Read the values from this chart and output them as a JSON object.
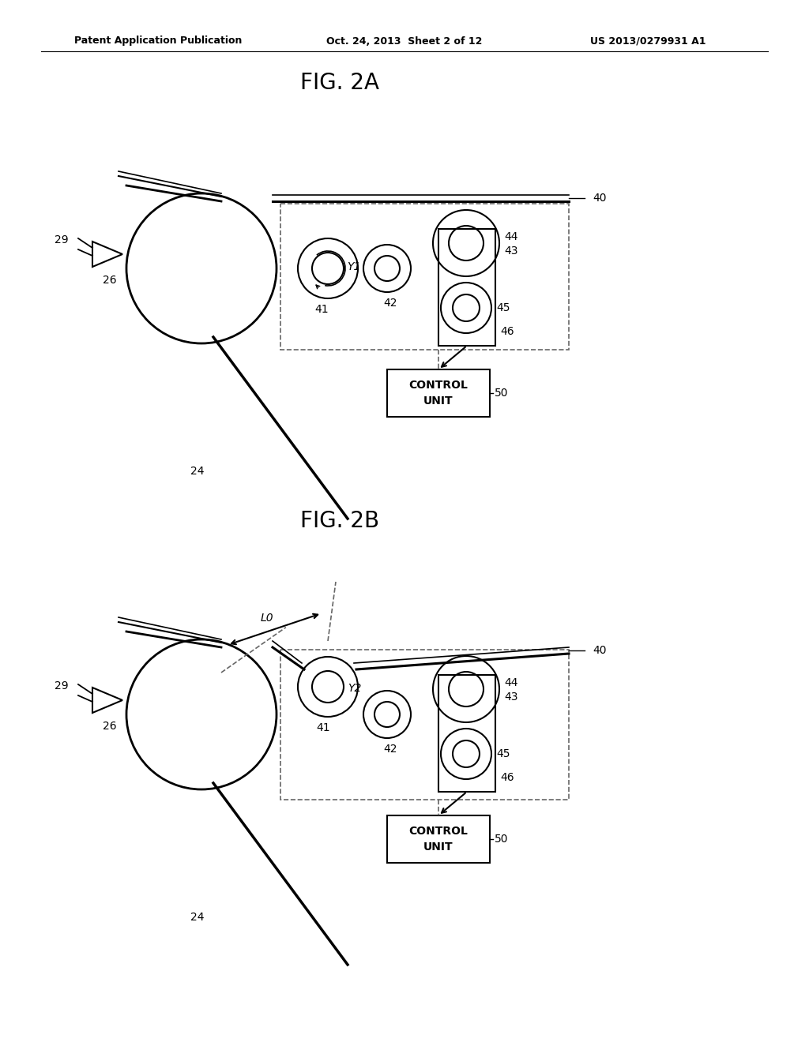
{
  "bg_color": "#ffffff",
  "header_left": "Patent Application Publication",
  "header_center": "Oct. 24, 2013  Sheet 2 of 12",
  "header_right": "US 2013/0279931 A1",
  "fig2a_title": "FIG. 2A",
  "fig2b_title": "FIG. 2B",
  "line_color": "#000000",
  "dashed_color": "#666666"
}
